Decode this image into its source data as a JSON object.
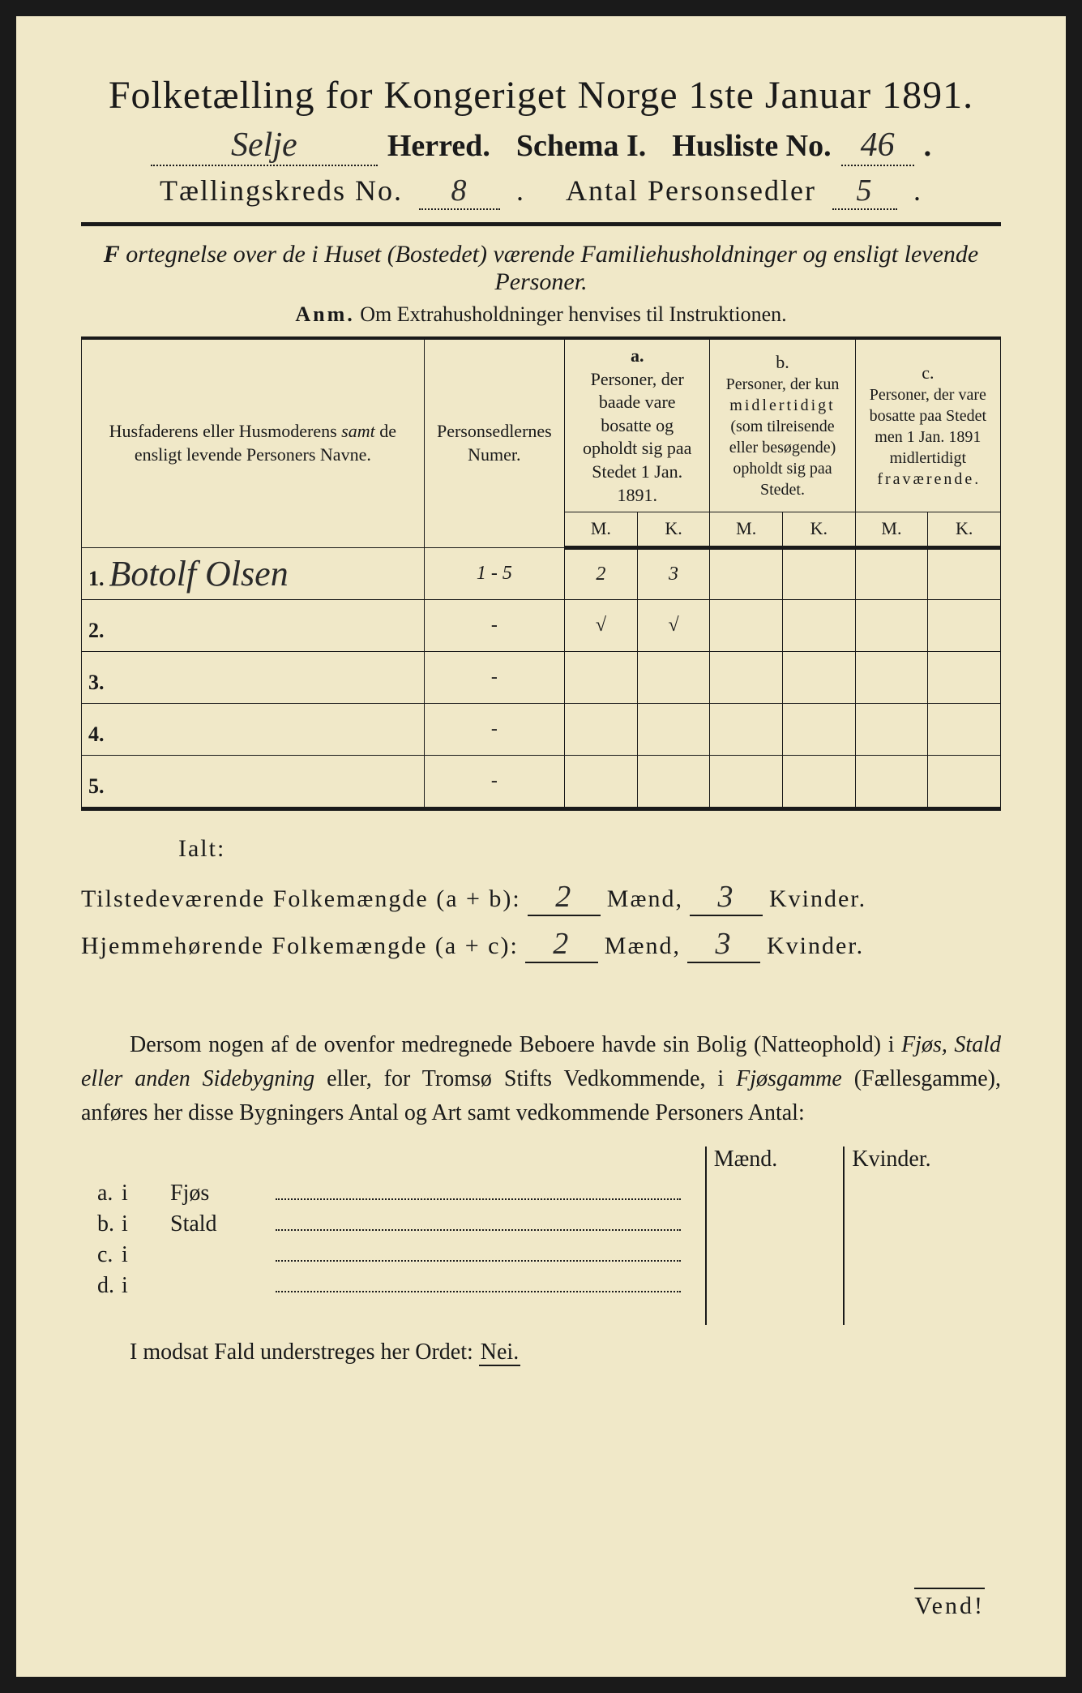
{
  "header": {
    "title": "Folketælling for Kongeriget Norge 1ste Januar 1891.",
    "herred_value": "Selje",
    "herred_label": "Herred.",
    "schema_label": "Schema I.",
    "husliste_label": "Husliste No.",
    "husliste_value": "46",
    "kreds_label": "Tællingskreds No.",
    "kreds_value": "8",
    "antal_label": "Antal Personsedler",
    "antal_value": "5"
  },
  "subtitle": "Fortegnelse over de i Huset (Bostedet) værende Familiehusholdninger og ensligt levende Personer.",
  "anm_bold": "Anm.",
  "anm_text": "Om Extrahusholdninger henvises til Instruktionen.",
  "table": {
    "h_name": "Husfaderens eller Husmoderens samt de ensligt levende Personers Navne.",
    "h_num": "Personsedlernes Numer.",
    "h_a_letter": "a.",
    "h_a": "Personer, der baade vare bosatte og opholdt sig paa Stedet 1 Jan. 1891.",
    "h_b_letter": "b.",
    "h_b": "Personer, der kun midlertidigt (som tilreisende eller besøgende) opholdt sig paa Stedet.",
    "h_c_letter": "c.",
    "h_c": "Personer, der vare bosatte paa Stedet men 1 Jan. 1891 midlertidigt fraværende.",
    "h_m": "M.",
    "h_k": "K.",
    "rows": [
      {
        "n": "1.",
        "name": "Botolf Olsen",
        "num": "1 - 5",
        "am": "2",
        "ak": "3",
        "bm": "",
        "bk": "",
        "cm": "",
        "ck": ""
      },
      {
        "n": "2.",
        "name": "",
        "num": "-",
        "am": "√",
        "ak": "√",
        "bm": "",
        "bk": "",
        "cm": "",
        "ck": ""
      },
      {
        "n": "3.",
        "name": "",
        "num": "-",
        "am": "",
        "ak": "",
        "bm": "",
        "bk": "",
        "cm": "",
        "ck": ""
      },
      {
        "n": "4.",
        "name": "",
        "num": "-",
        "am": "",
        "ak": "",
        "bm": "",
        "bk": "",
        "cm": "",
        "ck": ""
      },
      {
        "n": "5.",
        "name": "",
        "num": "-",
        "am": "",
        "ak": "",
        "bm": "",
        "bk": "",
        "cm": "",
        "ck": ""
      }
    ]
  },
  "ialt": {
    "label": "Ialt:",
    "row1_label": "Tilstedeværende Folkemængde (a + b):",
    "row1_m": "2",
    "row1_k": "3",
    "row2_label": "Hjemmehørende Folkemængde (a + c):",
    "row2_m": "2",
    "row2_k": "3",
    "maend": "Mænd,",
    "kvinder": "Kvinder."
  },
  "paragraph": {
    "p1": "Dersom nogen af de ovenfor medregnede Beboere havde sin Bolig (Natteophold) i ",
    "p2": "Fjøs, Stald eller anden Sidebygning",
    "p3": " eller, for Tromsø Stifts Vedkommende, i ",
    "p4": "Fjøsgamme",
    "p5": " (Fællesgamme), anføres her disse Bygningers Antal og Art samt vedkommende Personers Antal:"
  },
  "sidebygning": {
    "h_maend": "Mænd.",
    "h_kvinder": "Kvinder.",
    "rows": [
      {
        "letter": "a.",
        "i": "i",
        "label": "Fjøs"
      },
      {
        "letter": "b.",
        "i": "i",
        "label": "Stald"
      },
      {
        "letter": "c.",
        "i": "i",
        "label": ""
      },
      {
        "letter": "d.",
        "i": "i",
        "label": ""
      }
    ]
  },
  "modsat": {
    "text": "I modsat Fald understreges her Ordet: ",
    "nei": "Nei."
  },
  "vend": "Vend!"
}
